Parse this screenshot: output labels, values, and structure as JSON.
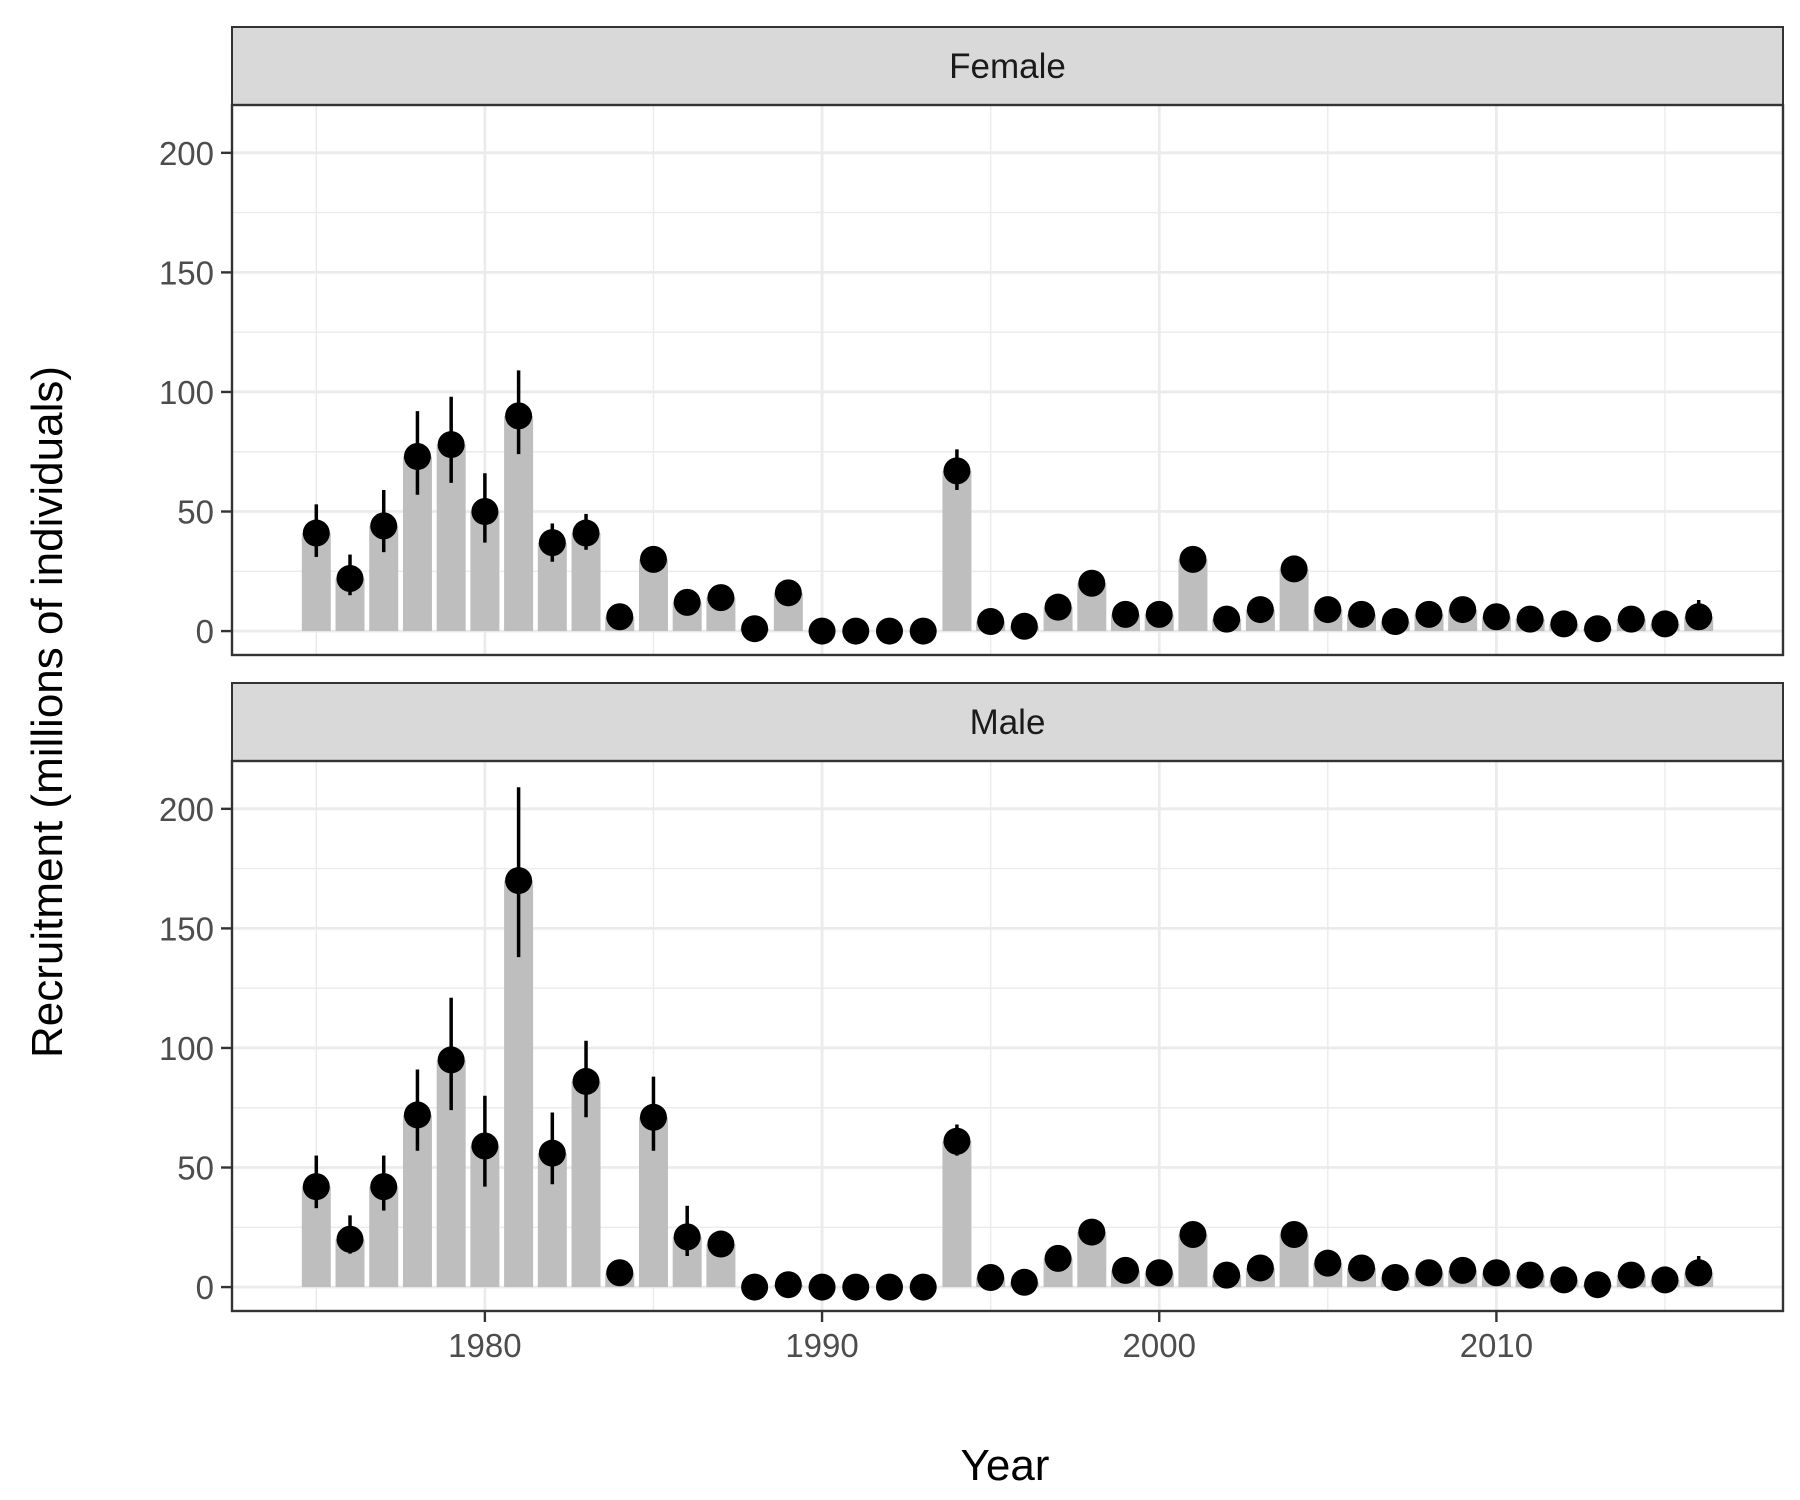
{
  "chart_data": {
    "type": "bar",
    "xlabel": "Year",
    "ylabel": "Recruitment (millions of individuals)",
    "x_ticks": [
      1980,
      1990,
      2000,
      2010
    ],
    "y_ticks": [
      0,
      50,
      100,
      150,
      200
    ],
    "xlim": [
      1972.5,
      2018.5
    ],
    "ylim": [
      -10,
      220
    ],
    "grid": true,
    "colors": {
      "bar": "#bebebe",
      "point": "#000000",
      "strip": "#d9d9d9",
      "frame": "#333333",
      "grid_major": "#ebebeb"
    },
    "years": [
      1975,
      1976,
      1977,
      1978,
      1979,
      1980,
      1981,
      1982,
      1983,
      1984,
      1985,
      1986,
      1987,
      1988,
      1989,
      1990,
      1991,
      1992,
      1993,
      1994,
      1995,
      1996,
      1997,
      1998,
      1999,
      2000,
      2001,
      2002,
      2003,
      2004,
      2005,
      2006,
      2007,
      2008,
      2009,
      2010,
      2011,
      2012,
      2013,
      2014,
      2015,
      2016
    ],
    "panels": [
      {
        "strip": "Female",
        "values": [
          41,
          22,
          44,
          73,
          78,
          50,
          90,
          37,
          41,
          6,
          30,
          12,
          14,
          1,
          16,
          0,
          0,
          0,
          0,
          67,
          4,
          2,
          10,
          20,
          7,
          7,
          30,
          5,
          9,
          26,
          9,
          7,
          4,
          7,
          9,
          6,
          5,
          3,
          1,
          5,
          3,
          6
        ],
        "lower": [
          31,
          15,
          33,
          57,
          62,
          37,
          74,
          29,
          34,
          null,
          null,
          null,
          null,
          null,
          null,
          null,
          null,
          null,
          null,
          59,
          null,
          null,
          null,
          null,
          null,
          null,
          null,
          null,
          null,
          null,
          null,
          null,
          null,
          null,
          null,
          null,
          null,
          null,
          null,
          null,
          null,
          null
        ],
        "upper": [
          53,
          32,
          59,
          92,
          98,
          66,
          109,
          45,
          49,
          null,
          null,
          null,
          null,
          null,
          null,
          null,
          null,
          null,
          null,
          76,
          null,
          null,
          null,
          null,
          null,
          null,
          null,
          null,
          null,
          null,
          null,
          null,
          null,
          null,
          null,
          null,
          null,
          null,
          null,
          null,
          null,
          13
        ]
      },
      {
        "strip": "Male",
        "values": [
          42,
          20,
          42,
          72,
          95,
          59,
          170,
          56,
          86,
          6,
          71,
          21,
          18,
          0,
          1,
          0,
          0,
          0,
          0,
          61,
          4,
          2,
          12,
          23,
          7,
          6,
          22,
          5,
          8,
          22,
          10,
          8,
          4,
          6,
          7,
          6,
          5,
          3,
          1,
          5,
          3,
          6
        ],
        "lower": [
          33,
          14,
          32,
          57,
          74,
          42,
          138,
          43,
          71,
          null,
          57,
          13,
          null,
          null,
          null,
          null,
          null,
          null,
          null,
          55,
          null,
          null,
          null,
          null,
          null,
          null,
          null,
          null,
          null,
          null,
          null,
          null,
          null,
          null,
          null,
          null,
          null,
          null,
          null,
          null,
          null,
          null
        ],
        "upper": [
          55,
          30,
          55,
          91,
          121,
          80,
          209,
          73,
          103,
          null,
          88,
          34,
          null,
          null,
          null,
          null,
          null,
          null,
          null,
          68,
          null,
          null,
          null,
          null,
          null,
          null,
          null,
          null,
          null,
          null,
          null,
          null,
          null,
          null,
          null,
          null,
          null,
          null,
          null,
          null,
          null,
          13
        ]
      }
    ]
  }
}
